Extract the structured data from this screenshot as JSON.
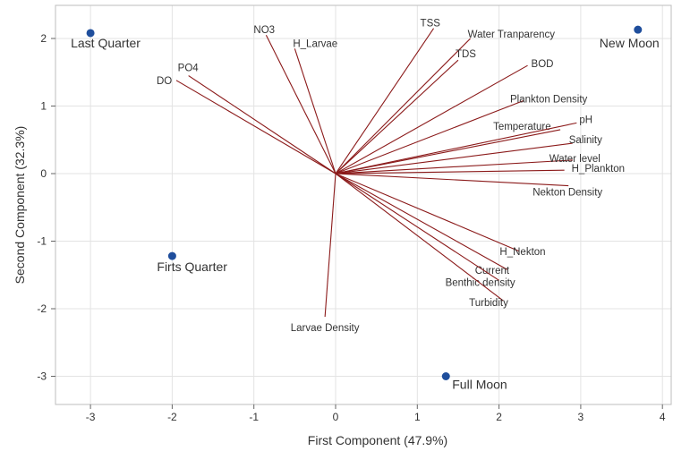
{
  "chart_data": {
    "type": "scatter",
    "title": "",
    "xlabel": "First Component (47.9%)",
    "ylabel": "Second Component (32.3%)",
    "xlim": [
      -3.3,
      4.1
    ],
    "ylim": [
      -3.3,
      2.25
    ],
    "xticks": [
      -3,
      -2,
      -1,
      0,
      1,
      2,
      3,
      4
    ],
    "yticks": [
      -3,
      -2,
      -1,
      0,
      1,
      2
    ],
    "grid": true,
    "colors": {
      "observation": "#1f4e9c",
      "vector": "#8b1a1a",
      "grid": "#e3e3e3",
      "frame": "#bdbdbd"
    },
    "observations": [
      {
        "label": "Last Quarter",
        "x": -3.0,
        "y": 2.08
      },
      {
        "label": "New Moon",
        "x": 3.7,
        "y": 2.13
      },
      {
        "label": "Firts Quarter",
        "x": -2.0,
        "y": -1.22
      },
      {
        "label": "Full Moon",
        "x": 1.35,
        "y": -3.0
      }
    ],
    "vectors": [
      {
        "label": "NO3",
        "x": -0.85,
        "y": 2.05
      },
      {
        "label": "H_Larvae",
        "x": -0.5,
        "y": 1.85
      },
      {
        "label": "PO4",
        "x": -1.8,
        "y": 1.45
      },
      {
        "label": "DO",
        "x": -1.95,
        "y": 1.38
      },
      {
        "label": "TSS",
        "x": 1.2,
        "y": 2.15
      },
      {
        "label": "Water Tranparency",
        "x": 1.65,
        "y": 2.0
      },
      {
        "label": "TDS",
        "x": 1.5,
        "y": 1.68
      },
      {
        "label": "BOD",
        "x": 2.35,
        "y": 1.6
      },
      {
        "label": "Plankton Density",
        "x": 2.3,
        "y": 1.08
      },
      {
        "label": "Temperature",
        "x": 2.75,
        "y": 0.65
      },
      {
        "label": "pH",
        "x": 2.95,
        "y": 0.75
      },
      {
        "label": "Salinity",
        "x": 2.9,
        "y": 0.45
      },
      {
        "label": "Water level",
        "x": 2.9,
        "y": 0.2
      },
      {
        "label": "H_Plankton",
        "x": 2.8,
        "y": 0.05
      },
      {
        "label": "Nekton Density",
        "x": 2.85,
        "y": -0.18
      },
      {
        "label": "H_Nekton",
        "x": 2.25,
        "y": -1.15
      },
      {
        "label": "Current",
        "x": 2.1,
        "y": -1.42
      },
      {
        "label": "Benthic density",
        "x": 2.0,
        "y": -1.58
      },
      {
        "label": "Turbidity",
        "x": 2.05,
        "y": -1.88
      },
      {
        "label": "Larvae Density",
        "x": -0.13,
        "y": -2.12
      }
    ]
  }
}
